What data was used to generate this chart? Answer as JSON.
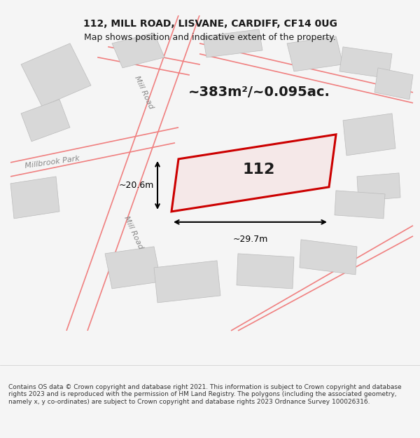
{
  "title_line1": "112, MILL ROAD, LISVANE, CARDIFF, CF14 0UG",
  "title_line2": "Map shows position and indicative extent of the property.",
  "area_text": "~383m²/~0.095ac.",
  "label_112": "112",
  "dim_width": "~29.7m",
  "dim_height": "~20.6m",
  "road_label1": "Mill Road",
  "road_label2": "Mill Road",
  "street_label": "Millbrook Park",
  "footer": "Contains OS data © Crown copyright and database right 2021. This information is subject to Crown copyright and database rights 2023 and is reproduced with the permission of HM Land Registry. The polygons (including the associated geometry, namely x, y co-ordinates) are subject to Crown copyright and database rights 2023 Ordnance Survey 100026316.",
  "bg_color": "#f5f5f5",
  "map_bg": "#ffffff",
  "building_fill": "#d8d8d8",
  "building_edge": "#cccccc",
  "road_line_color": "#f08080",
  "highlight_fill": "#f0d0d0",
  "highlight_edge": "#cc0000",
  "dim_color": "#000000",
  "text_color": "#1a1a1a",
  "footer_color": "#333333"
}
